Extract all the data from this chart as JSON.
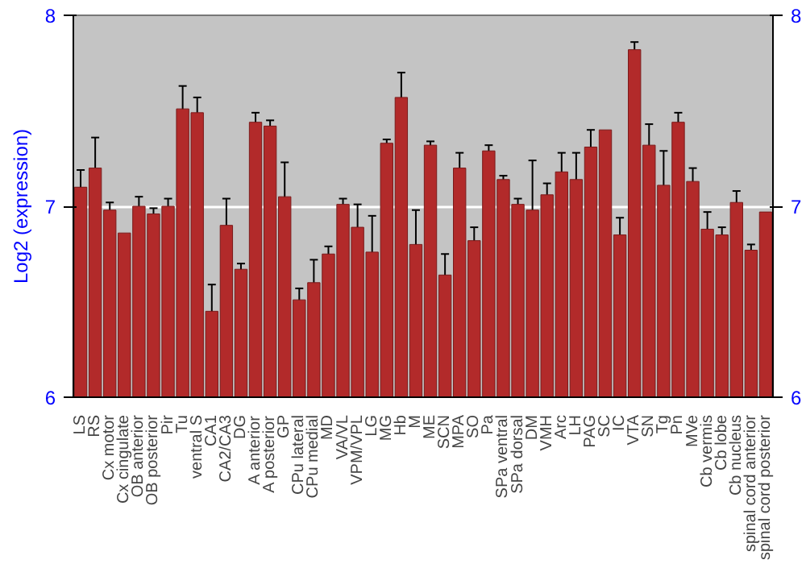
{
  "chart_data": {
    "type": "bar",
    "ylabel": "Log2 (expression)",
    "categories": [
      "LS",
      "RS",
      "Cx motor",
      "Cx cingulate",
      "OB anterior",
      "OB posterior",
      "Pir",
      "Tu",
      "ventral S",
      "CA1",
      "CA2/CA3",
      "DG",
      "A anterior",
      "A posterior",
      "GP",
      "CPu lateral",
      "CPu medial",
      "MD",
      "VA/VL",
      "VPM/VPL",
      "LG",
      "MG",
      "Hb",
      "M",
      "ME",
      "SCN",
      "MPA",
      "SO",
      "Pa",
      "SPa ventral",
      "SPa dorsal",
      "DM",
      "VMH",
      "Arc",
      "LH",
      "PAG",
      "SC",
      "IC",
      "VTA",
      "SN",
      "Tg",
      "Pn",
      "MVe",
      "Cb vermis",
      "Cb lobe",
      "Cb nucleus",
      "spinal cord anterior",
      "spinal cord posterior"
    ],
    "values": [
      7.1,
      7.2,
      6.98,
      6.86,
      7.0,
      6.96,
      7.0,
      7.51,
      7.49,
      6.45,
      6.9,
      6.67,
      7.44,
      7.42,
      7.05,
      6.51,
      6.6,
      6.75,
      7.01,
      6.89,
      6.76,
      7.33,
      7.57,
      6.8,
      7.32,
      6.64,
      7.2,
      6.82,
      7.29,
      7.14,
      7.01,
      6.98,
      7.06,
      7.18,
      7.14,
      7.31,
      7.4,
      6.85,
      7.82,
      7.32,
      7.11,
      7.44,
      7.13,
      6.88,
      6.85,
      7.02,
      6.77,
      6.97
    ],
    "errors": [
      0.09,
      0.16,
      0.04,
      null,
      0.05,
      0.03,
      0.04,
      0.12,
      0.08,
      0.14,
      0.14,
      0.03,
      0.05,
      0.03,
      0.18,
      0.06,
      0.12,
      0.04,
      0.03,
      0.12,
      0.19,
      0.02,
      0.13,
      0.18,
      0.02,
      0.11,
      0.08,
      0.07,
      0.03,
      0.02,
      0.03,
      0.26,
      0.06,
      0.1,
      0.14,
      0.09,
      null,
      0.09,
      0.04,
      0.11,
      0.18,
      0.05,
      0.07,
      0.09,
      0.04,
      0.06,
      0.03,
      null
    ],
    "color": "#b22a2a",
    "ylim": [
      6,
      8
    ],
    "yticks": [
      6,
      7,
      8
    ],
    "y2lim": [
      6,
      8
    ],
    "y2ticks": [
      6,
      7,
      8
    ],
    "grid": "y"
  }
}
